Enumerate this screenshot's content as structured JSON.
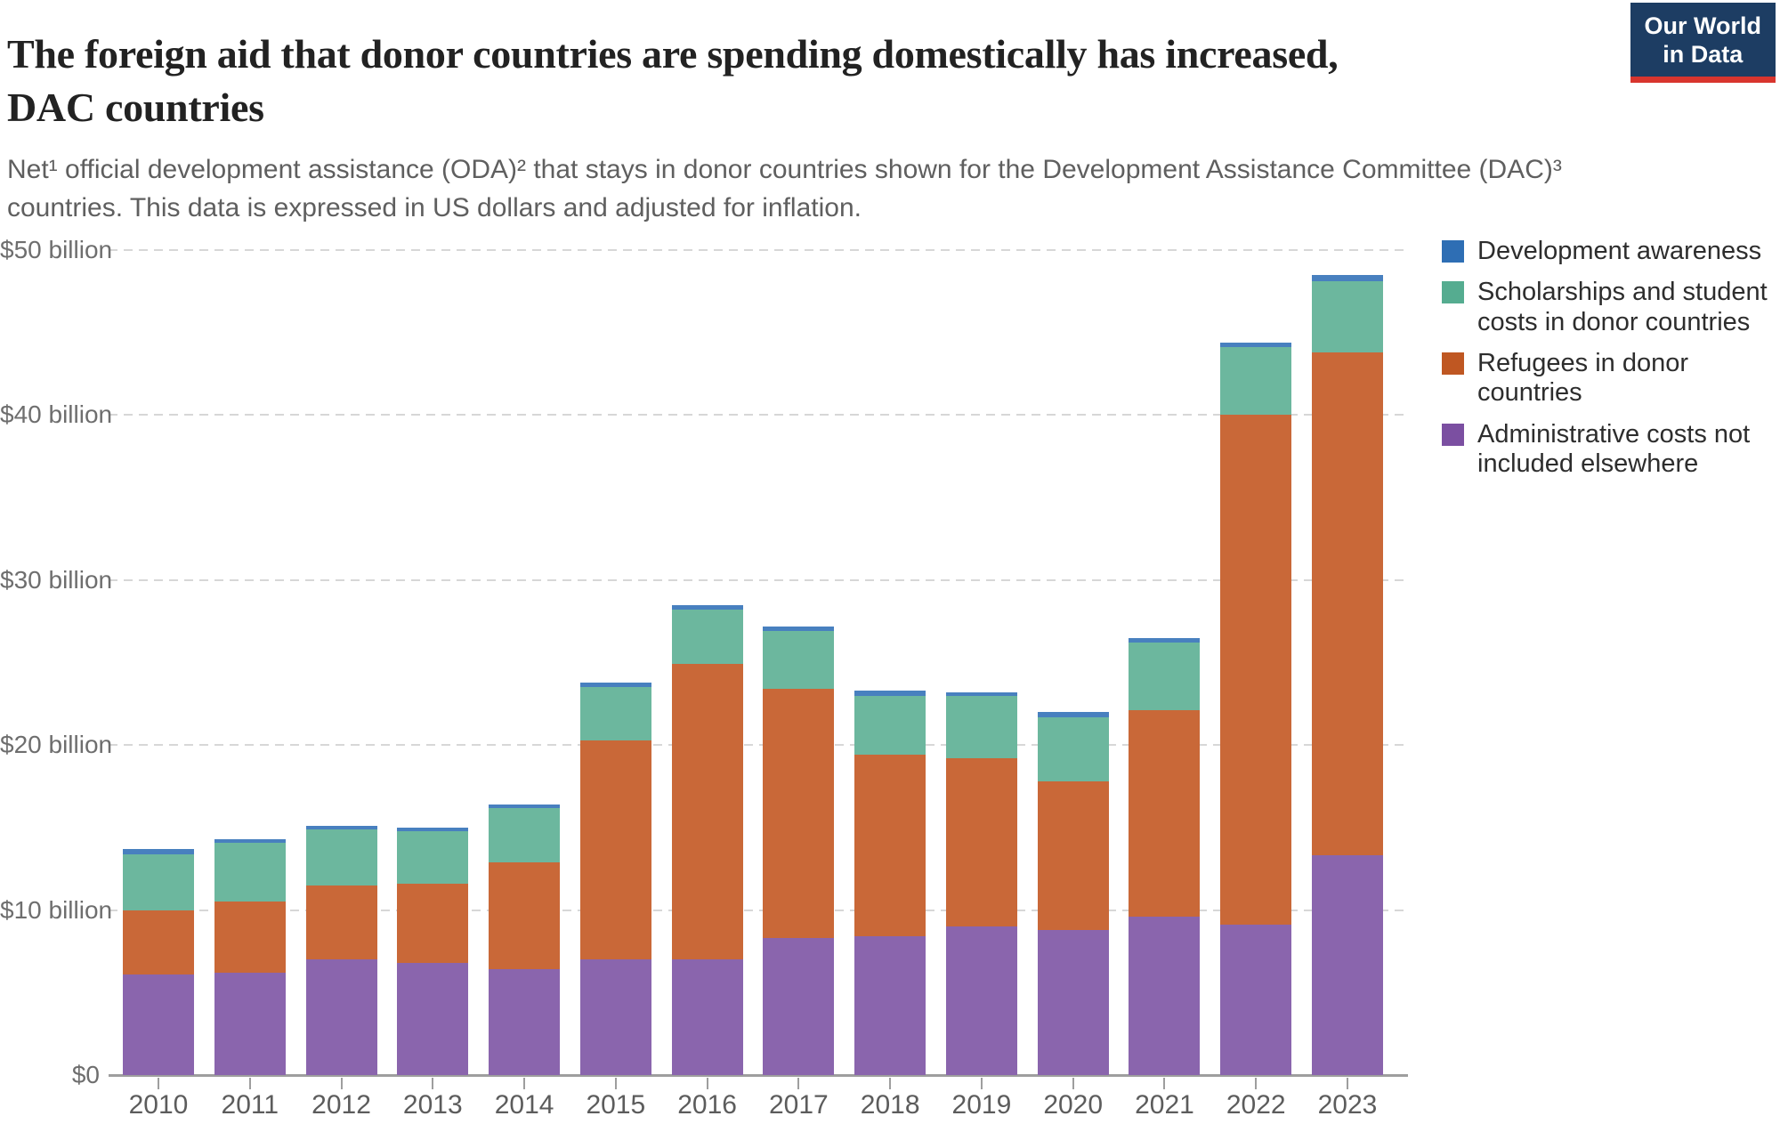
{
  "header": {
    "title": "The foreign aid that donor countries are spending domestically has increased, DAC countries",
    "subtitle": "Net¹ official development assistance (ODA)² that stays in donor countries shown for the Development Assistance Committee (DAC)³ countries. This data is expressed in US dollars and adjusted for inflation.",
    "logo": {
      "line1": "Our World",
      "line2": "in Data",
      "bg_color": "#1d3d63",
      "accent_color": "#d8352e"
    }
  },
  "chart_data": {
    "type": "bar",
    "stacked": true,
    "title": "The foreign aid that donor countries are spending domestically has increased, DAC countries",
    "unit": "US$ billion, adjusted for inflation",
    "categories": [
      "2010",
      "2011",
      "2012",
      "2013",
      "2014",
      "2015",
      "2016",
      "2017",
      "2018",
      "2019",
      "2020",
      "2021",
      "2022",
      "2023"
    ],
    "series": [
      {
        "id": "admin-costs",
        "name": "Administrative costs not included elsewhere",
        "color": "#7b4fa1",
        "bar_color": "#8a65ad",
        "values": [
          6.1,
          6.2,
          7.0,
          6.8,
          6.4,
          7.0,
          7.0,
          8.3,
          8.4,
          9.0,
          8.8,
          9.6,
          9.1,
          13.3
        ]
      },
      {
        "id": "refugees",
        "name": "Refugees in donor countries",
        "color": "#bf5722",
        "bar_color": "#c96838",
        "values": [
          3.9,
          4.3,
          4.5,
          4.8,
          6.5,
          13.3,
          17.9,
          15.1,
          11.0,
          10.2,
          9.0,
          12.5,
          30.9,
          30.5
        ]
      },
      {
        "id": "scholarships",
        "name": "Scholarships and student costs in donor countries",
        "color": "#55ac90",
        "bar_color": "#6cb79e",
        "values": [
          3.4,
          3.6,
          3.4,
          3.2,
          3.3,
          3.2,
          3.3,
          3.5,
          3.6,
          3.8,
          3.9,
          4.1,
          4.1,
          4.3
        ]
      },
      {
        "id": "development-awareness",
        "name": "Development awareness",
        "color": "#2e6eb4",
        "bar_color": "#4880bf",
        "values": [
          0.3,
          0.2,
          0.2,
          0.2,
          0.2,
          0.3,
          0.3,
          0.3,
          0.3,
          0.2,
          0.3,
          0.3,
          0.3,
          0.4
        ]
      }
    ],
    "totals": [
      13.7,
      14.3,
      15.1,
      15.0,
      16.4,
      23.8,
      28.5,
      27.2,
      23.3,
      23.2,
      22.0,
      26.5,
      44.4,
      48.5
    ],
    "legend_position": "right",
    "legend_order_top_to_bottom": [
      "Development awareness",
      "Scholarships and student costs in donor countries",
      "Refugees in donor countries",
      "Administrative costs not included elsewhere"
    ],
    "grid": "horizontal-dashed",
    "xlabel": "",
    "ylabel": "",
    "ylim": [
      0,
      50
    ],
    "yticks": [
      {
        "value": 0,
        "label": "$0"
      },
      {
        "value": 10,
        "label": "$10 billion"
      },
      {
        "value": 20,
        "label": "$20 billion"
      },
      {
        "value": 30,
        "label": "$30 billion"
      },
      {
        "value": 40,
        "label": "$40 billion"
      },
      {
        "value": 50,
        "label": "$50 billion"
      }
    ]
  },
  "colors": {
    "grid": "#d7d7d7",
    "axis": "#9e9e9e",
    "y_label": "#6e6e6e",
    "x_label": "#5c5c5c",
    "legend_text": "#2d2d2d",
    "title": "#222222",
    "subtitle": "#5f5f5f"
  }
}
